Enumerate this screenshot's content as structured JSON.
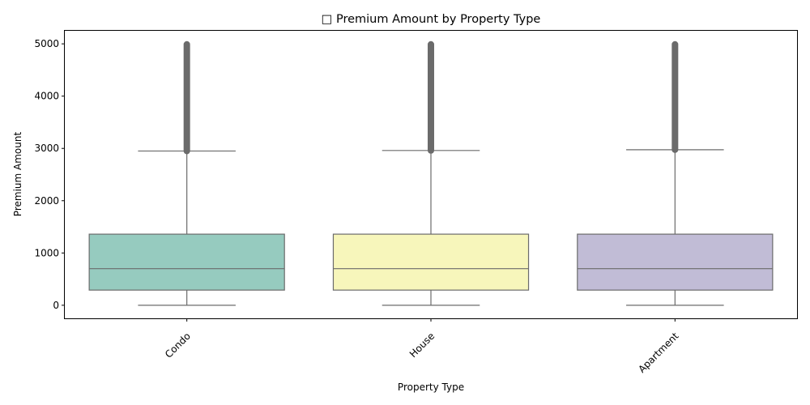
{
  "chart_data": {
    "type": "box",
    "title": "□ Premium Amount by Property Type",
    "xlabel": "Property Type",
    "ylabel": "Premium Amount",
    "categories": [
      "Condo",
      "House",
      "Apartment"
    ],
    "ylim": [
      -250,
      5250
    ],
    "yticks": [
      0,
      1000,
      2000,
      3000,
      4000,
      5000
    ],
    "grid": false,
    "legend": "none",
    "x_tick_rotation": 45,
    "colors": {
      "Condo": "#96cbbf",
      "House": "#f7f6bb",
      "Apartment": "#c1bcd6",
      "line": "#6b6b6b",
      "outlier": "#6b6b6b"
    },
    "boxes": [
      {
        "category": "Condo",
        "whisker_low": 0,
        "q1": 290,
        "median": 700,
        "q3": 1360,
        "whisker_high": 2950,
        "outliers_from": 2950,
        "outliers_to": 4990
      },
      {
        "category": "House",
        "whisker_low": 0,
        "q1": 290,
        "median": 700,
        "q3": 1360,
        "whisker_high": 2960,
        "outliers_from": 2960,
        "outliers_to": 4990
      },
      {
        "category": "Apartment",
        "whisker_low": 0,
        "q1": 290,
        "median": 700,
        "q3": 1360,
        "whisker_high": 2975,
        "outliers_from": 2975,
        "outliers_to": 4990
      }
    ]
  }
}
